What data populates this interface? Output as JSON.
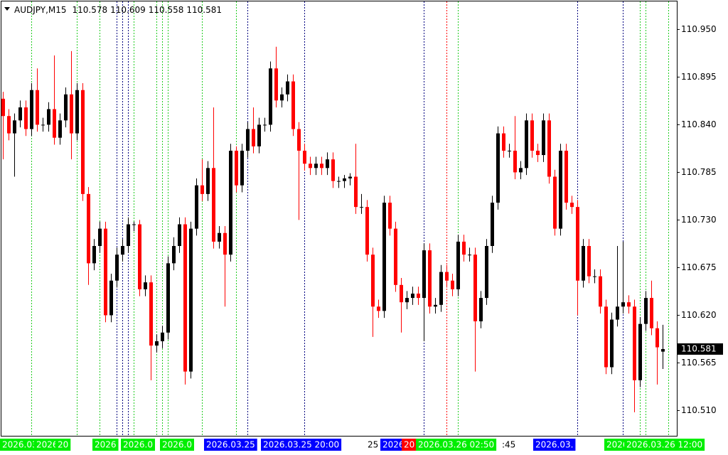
{
  "chart_data": {
    "type": "candlestick",
    "symbol": "AUDJPY,M15",
    "open": [
      110.87,
      110.85,
      110.83,
      110.845,
      110.86,
      110.835,
      110.88,
      110.84,
      110.84,
      110.858,
      110.825,
      110.845,
      110.875,
      110.83,
      110.88,
      110.76,
      110.68,
      110.7,
      110.72,
      110.62,
      110.66,
      110.69,
      110.7,
      110.725,
      110.725,
      110.65,
      110.658,
      110.585,
      110.59,
      110.6,
      110.68,
      110.7,
      110.725,
      110.555,
      110.72,
      110.77,
      110.76,
      110.79,
      110.705,
      110.715,
      110.69,
      110.81,
      110.77,
      110.81,
      110.835,
      110.815,
      110.84,
      110.84,
      110.905,
      110.868,
      110.875,
      110.89,
      110.835,
      110.81,
      110.795,
      110.79,
      110.795,
      110.79,
      110.8,
      110.775,
      110.775,
      110.778,
      110.78,
      110.745,
      110.745,
      110.69,
      110.63,
      110.625,
      110.75,
      110.72,
      110.655,
      110.635,
      110.64,
      110.645,
      110.64,
      110.695,
      110.63,
      110.632,
      110.67,
      110.66,
      110.65,
      110.705,
      110.69,
      110.69,
      110.613,
      110.64,
      110.7,
      110.75,
      110.83,
      110.81,
      110.81,
      110.785,
      110.79,
      110.845,
      110.81,
      110.805,
      110.845,
      110.78,
      110.72,
      110.81,
      110.75,
      110.745,
      110.66,
      110.7,
      110.665,
      110.665,
      110.63,
      110.56,
      110.615,
      110.63,
      110.635,
      110.63,
      110.545,
      110.61,
      110.64,
      110.605,
      110.578
    ],
    "high": [
      110.878,
      110.858,
      110.853,
      110.868,
      110.868,
      110.888,
      110.905,
      110.848,
      110.866,
      110.92,
      110.853,
      110.883,
      110.925,
      110.888,
      110.888,
      110.768,
      110.708,
      110.728,
      110.728,
      110.668,
      110.698,
      110.708,
      110.733,
      110.728,
      110.73,
      110.666,
      110.666,
      110.598,
      110.608,
      110.688,
      110.71,
      110.733,
      110.733,
      110.728,
      110.778,
      110.8,
      110.798,
      110.86,
      110.723,
      110.723,
      110.818,
      110.815,
      110.818,
      110.843,
      110.86,
      110.848,
      110.848,
      110.913,
      110.93,
      110.883,
      110.898,
      110.898,
      110.843,
      110.818,
      110.803,
      110.803,
      110.803,
      110.808,
      110.808,
      110.78,
      110.782,
      110.784,
      110.818,
      110.76,
      110.753,
      110.698,
      110.638,
      110.758,
      110.758,
      110.728,
      110.663,
      110.648,
      110.653,
      110.653,
      110.703,
      110.703,
      110.64,
      110.678,
      110.678,
      110.668,
      110.713,
      110.713,
      110.698,
      110.698,
      110.648,
      110.708,
      110.758,
      110.838,
      110.838,
      110.818,
      110.85,
      110.798,
      110.853,
      110.853,
      110.818,
      110.853,
      110.853,
      110.788,
      110.818,
      110.818,
      110.758,
      110.753,
      110.708,
      110.708,
      110.673,
      110.673,
      110.638,
      110.623,
      110.7,
      110.705,
      110.643,
      110.638,
      110.618,
      110.648,
      110.66,
      110.613,
      110.609
    ],
    "low": [
      110.8,
      110.822,
      110.78,
      110.837,
      110.827,
      110.827,
      110.832,
      110.832,
      110.832,
      110.817,
      110.817,
      110.837,
      110.8,
      110.822,
      110.752,
      110.655,
      110.672,
      110.692,
      110.612,
      110.612,
      110.652,
      110.682,
      110.692,
      110.717,
      110.642,
      110.642,
      110.545,
      110.577,
      110.582,
      110.592,
      110.672,
      110.692,
      110.54,
      110.547,
      110.712,
      110.752,
      110.752,
      110.697,
      110.697,
      110.63,
      110.682,
      110.762,
      110.762,
      110.802,
      110.807,
      110.807,
      110.832,
      110.832,
      110.86,
      110.86,
      110.867,
      110.827,
      110.73,
      110.787,
      110.782,
      110.782,
      110.782,
      110.782,
      110.767,
      110.767,
      110.767,
      110.77,
      110.737,
      110.737,
      110.682,
      110.595,
      110.617,
      110.617,
      110.712,
      110.647,
      110.6,
      110.627,
      110.632,
      110.632,
      110.59,
      110.622,
      110.622,
      110.624,
      110.652,
      110.642,
      110.642,
      110.682,
      110.682,
      110.555,
      110.605,
      110.632,
      110.692,
      110.742,
      110.802,
      110.802,
      110.777,
      110.777,
      110.782,
      110.802,
      110.797,
      110.797,
      110.772,
      110.712,
      110.712,
      110.742,
      110.737,
      110.62,
      110.652,
      110.657,
      110.657,
      110.622,
      110.552,
      110.552,
      110.607,
      110.622,
      110.622,
      110.508,
      110.537,
      110.602,
      110.597,
      110.54,
      110.558
    ],
    "close": [
      110.85,
      110.83,
      110.845,
      110.86,
      110.835,
      110.88,
      110.84,
      110.84,
      110.858,
      110.825,
      110.845,
      110.875,
      110.83,
      110.88,
      110.76,
      110.68,
      110.7,
      110.72,
      110.62,
      110.66,
      110.69,
      110.7,
      110.725,
      110.725,
      110.65,
      110.658,
      110.585,
      110.59,
      110.6,
      110.68,
      110.7,
      110.725,
      110.555,
      110.72,
      110.77,
      110.76,
      110.79,
      110.705,
      110.715,
      110.69,
      110.81,
      110.77,
      110.81,
      110.835,
      110.815,
      110.84,
      110.84,
      110.905,
      110.868,
      110.875,
      110.89,
      110.835,
      110.81,
      110.795,
      110.79,
      110.795,
      110.79,
      110.8,
      110.775,
      110.775,
      110.778,
      110.78,
      110.745,
      110.745,
      110.69,
      110.63,
      110.625,
      110.75,
      110.72,
      110.655,
      110.635,
      110.64,
      110.645,
      110.64,
      110.695,
      110.63,
      110.632,
      110.67,
      110.66,
      110.65,
      110.705,
      110.69,
      110.69,
      110.613,
      110.64,
      110.7,
      110.75,
      110.83,
      110.81,
      110.81,
      110.785,
      110.79,
      110.845,
      110.81,
      110.805,
      110.845,
      110.78,
      110.72,
      110.81,
      110.75,
      110.745,
      110.66,
      110.7,
      110.665,
      110.665,
      110.63,
      110.56,
      110.615,
      110.63,
      110.635,
      110.63,
      110.545,
      110.61,
      110.64,
      110.605,
      110.583,
      110.581
    ],
    "bull_color": "#000000",
    "bear_color": "#ff0000",
    "ylim": [
      110.48,
      110.984
    ],
    "yticks": [
      {
        "value": 110.95,
        "label": "110.950"
      },
      110.895,
      {
        "value": 110.84,
        "label": "110.840"
      },
      110.785,
      {
        "value": 110.73,
        "label": "110.730"
      },
      110.675,
      {
        "value": 110.62,
        "label": "110.620"
      },
      110.565,
      {
        "value": 110.51,
        "label": "110.510"
      }
    ],
    "vlines": [
      {
        "x": 5,
        "color": "#22cc22"
      },
      {
        "x": 13,
        "color": "#22cc22"
      },
      {
        "x": 17,
        "color": "#22cc22"
      },
      {
        "x": 20,
        "color": "#000080"
      },
      {
        "x": 21,
        "color": "#000080"
      },
      {
        "x": 22,
        "color": "#000080"
      },
      {
        "x": 23,
        "color": "#22cc22"
      },
      {
        "x": 27,
        "color": "#22cc22"
      },
      {
        "x": 28,
        "color": "#22cc22"
      },
      {
        "x": 29,
        "color": "#22cc22"
      },
      {
        "x": 35,
        "color": "#22cc22"
      },
      {
        "x": 41,
        "color": "#22cc22"
      },
      {
        "x": 43,
        "color": "#000080"
      },
      {
        "x": 53,
        "color": "#000080"
      },
      {
        "x": 74,
        "color": "#000080"
      },
      {
        "x": 78,
        "color": "#ff0000"
      },
      {
        "x": 80,
        "color": "#22cc22"
      },
      {
        "x": 101,
        "color": "#000080"
      },
      {
        "x": 109,
        "color": "#000080"
      },
      {
        "x": 112,
        "color": "#22cc22"
      },
      {
        "x": 113,
        "color": "#22cc22"
      },
      {
        "x": 117,
        "color": "#22cc22"
      }
    ],
    "time_labels": [
      {
        "text": "2026.03.",
        "color": "#00ee00"
      },
      {
        "text": "2026",
        "color": "#00ee00"
      },
      {
        "text": "20",
        "color": "#00ee00"
      },
      {
        "text": "2026",
        "color": "#00ee00"
      },
      {
        "text": "2026.0",
        "color": "#00ee00"
      },
      {
        "text": "2026.0",
        "color": "#00ee00"
      },
      {
        "text": "2026.03.25",
        "color": "#0000ff"
      },
      {
        "text": "2026.03.25 20:00",
        "color": "#0000ff"
      },
      {
        "text": "25"
      },
      {
        "text": "2026",
        "color": "#0000ff"
      },
      {
        "text": "20",
        "color": "#ff0000"
      },
      {
        "text": "2026.03.26 02:50",
        "color": "#00ee00"
      },
      {
        "text": ":45"
      },
      {
        "text": "2026.03.",
        "color": "#0000ff"
      },
      {
        "text": "2026",
        "color": "#00ee00"
      },
      {
        "text": "2026.03.26 12:00",
        "color": "#00ee00"
      }
    ]
  }
}
